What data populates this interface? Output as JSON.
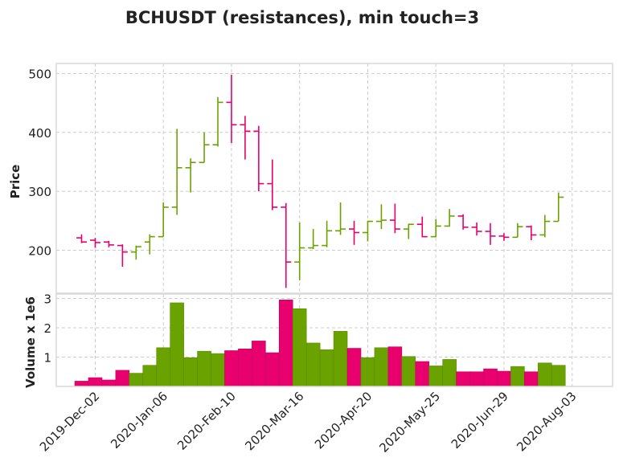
{
  "chart_data": {
    "type": "ohlc",
    "title": "BCHUSDT (resistances), min touch=3",
    "ylabel": "Price",
    "volume_label": "Volume x 1e6",
    "price_ylim": [
      127,
      517
    ],
    "price_yticks": [
      200,
      300,
      400,
      500
    ],
    "volume_ylim": [
      0,
      3.15
    ],
    "volume_yticks": [
      1,
      2,
      3
    ],
    "x_tick_labels": [
      "2019-Dec-02",
      "2020-Jan-06",
      "2020-Feb-10",
      "2020-Mar-16",
      "2020-Apr-20",
      "2020-May-25",
      "2020-Jun-29",
      "2020-Aug-03"
    ],
    "x_tick_indices": [
      1,
      6,
      11,
      16,
      21,
      26,
      31,
      36
    ],
    "grid": true,
    "colors": {
      "up": "#6aa300",
      "down": "#e8006e",
      "grid": "#cccccc",
      "frame": "#d9d9d9"
    },
    "candles": [
      {
        "o": 221,
        "h": 227,
        "l": 212,
        "c": 214,
        "v": 0.18
      },
      {
        "o": 217,
        "h": 221,
        "l": 204,
        "c": 213,
        "v": 0.3
      },
      {
        "o": 214,
        "h": 216,
        "l": 205,
        "c": 209,
        "v": 0.22
      },
      {
        "o": 208,
        "h": 210,
        "l": 172,
        "c": 197,
        "v": 0.55
      },
      {
        "o": 197,
        "h": 208,
        "l": 184,
        "c": 206,
        "v": 0.45
      },
      {
        "o": 214,
        "h": 227,
        "l": 193,
        "c": 223,
        "v": 0.72
      },
      {
        "o": 223,
        "h": 281,
        "l": 223,
        "c": 273,
        "v": 1.32
      },
      {
        "o": 273,
        "h": 406,
        "l": 260,
        "c": 340,
        "v": 2.85
      },
      {
        "o": 340,
        "h": 356,
        "l": 298,
        "c": 349,
        "v": 0.98
      },
      {
        "o": 349,
        "h": 400,
        "l": 349,
        "c": 379,
        "v": 1.2
      },
      {
        "o": 379,
        "h": 460,
        "l": 376,
        "c": 451,
        "v": 1.12
      },
      {
        "o": 451,
        "h": 498,
        "l": 382,
        "c": 413,
        "v": 1.22
      },
      {
        "o": 413,
        "h": 428,
        "l": 354,
        "c": 402,
        "v": 1.28
      },
      {
        "o": 402,
        "h": 411,
        "l": 300,
        "c": 313,
        "v": 1.55
      },
      {
        "o": 313,
        "h": 354,
        "l": 268,
        "c": 273,
        "v": 1.15
      },
      {
        "o": 273,
        "h": 280,
        "l": 136,
        "c": 180,
        "v": 2.95
      },
      {
        "o": 180,
        "h": 247,
        "l": 149,
        "c": 204,
        "v": 2.65
      },
      {
        "o": 204,
        "h": 236,
        "l": 202,
        "c": 208,
        "v": 1.48
      },
      {
        "o": 208,
        "h": 250,
        "l": 205,
        "c": 233,
        "v": 1.25
      },
      {
        "o": 233,
        "h": 281,
        "l": 226,
        "c": 236,
        "v": 1.88
      },
      {
        "o": 236,
        "h": 250,
        "l": 209,
        "c": 230,
        "v": 1.3
      },
      {
        "o": 230,
        "h": 250,
        "l": 215,
        "c": 249,
        "v": 0.98
      },
      {
        "o": 249,
        "h": 278,
        "l": 236,
        "c": 251,
        "v": 1.32
      },
      {
        "o": 251,
        "h": 279,
        "l": 229,
        "c": 236,
        "v": 1.35
      },
      {
        "o": 236,
        "h": 245,
        "l": 219,
        "c": 244,
        "v": 1.02
      },
      {
        "o": 244,
        "h": 257,
        "l": 222,
        "c": 223,
        "v": 0.85
      },
      {
        "o": 223,
        "h": 253,
        "l": 222,
        "c": 241,
        "v": 0.7
      },
      {
        "o": 241,
        "h": 270,
        "l": 240,
        "c": 258,
        "v": 0.92
      },
      {
        "o": 258,
        "h": 261,
        "l": 235,
        "c": 239,
        "v": 0.5
      },
      {
        "o": 239,
        "h": 247,
        "l": 225,
        "c": 232,
        "v": 0.5
      },
      {
        "o": 232,
        "h": 246,
        "l": 209,
        "c": 224,
        "v": 0.6
      },
      {
        "o": 224,
        "h": 229,
        "l": 216,
        "c": 222,
        "v": 0.52
      },
      {
        "o": 222,
        "h": 246,
        "l": 222,
        "c": 240,
        "v": 0.68
      },
      {
        "o": 240,
        "h": 242,
        "l": 217,
        "c": 226,
        "v": 0.5
      },
      {
        "o": 226,
        "h": 260,
        "l": 222,
        "c": 249,
        "v": 0.8
      },
      {
        "o": 249,
        "h": 298,
        "l": 249,
        "c": 290,
        "v": 0.72
      }
    ]
  }
}
